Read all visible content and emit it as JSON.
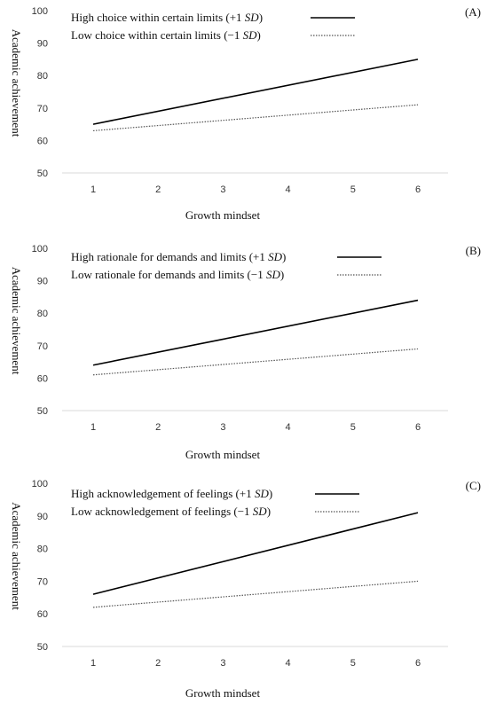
{
  "chart_data": [
    {
      "type": "line",
      "panel_label": "(A)",
      "xlabel": "Growth mindset",
      "ylabel": "Academic achievement",
      "x": [
        1,
        2,
        3,
        4,
        5,
        6
      ],
      "ylim": [
        50,
        100
      ],
      "yticks": [
        50,
        60,
        70,
        80,
        90,
        100
      ],
      "legend_position": "top-left",
      "series": [
        {
          "name_prefix": "High choice within certain limits (+1 ",
          "name_sd": "SD",
          "name_suffix": ")",
          "style": "solid",
          "start": [
            1,
            65
          ],
          "end": [
            6,
            85
          ]
        },
        {
          "name_prefix": "Low choice within certain limits (−1 ",
          "name_sd": "SD",
          "name_suffix": ")",
          "style": "dotted",
          "start": [
            1,
            63
          ],
          "end": [
            6,
            71
          ]
        }
      ]
    },
    {
      "type": "line",
      "panel_label": "(B)",
      "xlabel": "Growth mindset",
      "ylabel": "Academic achievement",
      "x": [
        1,
        2,
        3,
        4,
        5,
        6
      ],
      "ylim": [
        50,
        100
      ],
      "yticks": [
        50,
        60,
        70,
        80,
        90,
        100
      ],
      "legend_position": "top-left",
      "series": [
        {
          "name_prefix": "High rationale for demands and limits (+1 ",
          "name_sd": "SD",
          "name_suffix": ")",
          "style": "solid",
          "start": [
            1,
            64
          ],
          "end": [
            6,
            84
          ]
        },
        {
          "name_prefix": "Low rationale for demands and limits (−1 ",
          "name_sd": "SD",
          "name_suffix": ")",
          "style": "dotted",
          "start": [
            1,
            61
          ],
          "end": [
            6,
            69
          ]
        }
      ]
    },
    {
      "type": "line",
      "panel_label": "(C)",
      "xlabel": "Growth mindset",
      "ylabel": "Academic achievement",
      "x": [
        1,
        2,
        3,
        4,
        5,
        6
      ],
      "ylim": [
        50,
        100
      ],
      "yticks": [
        50,
        60,
        70,
        80,
        90,
        100
      ],
      "legend_position": "top-left",
      "series": [
        {
          "name_prefix": "High acknowledgement of feelings (+1 ",
          "name_sd": "SD",
          "name_suffix": ")",
          "style": "solid",
          "start": [
            1,
            66
          ],
          "end": [
            6,
            91
          ]
        },
        {
          "name_prefix": "Low acknowledgement of feelings (−1 ",
          "name_sd": "SD",
          "name_suffix": ")",
          "style": "dotted",
          "start": [
            1,
            62
          ],
          "end": [
            6,
            70
          ]
        }
      ]
    }
  ]
}
